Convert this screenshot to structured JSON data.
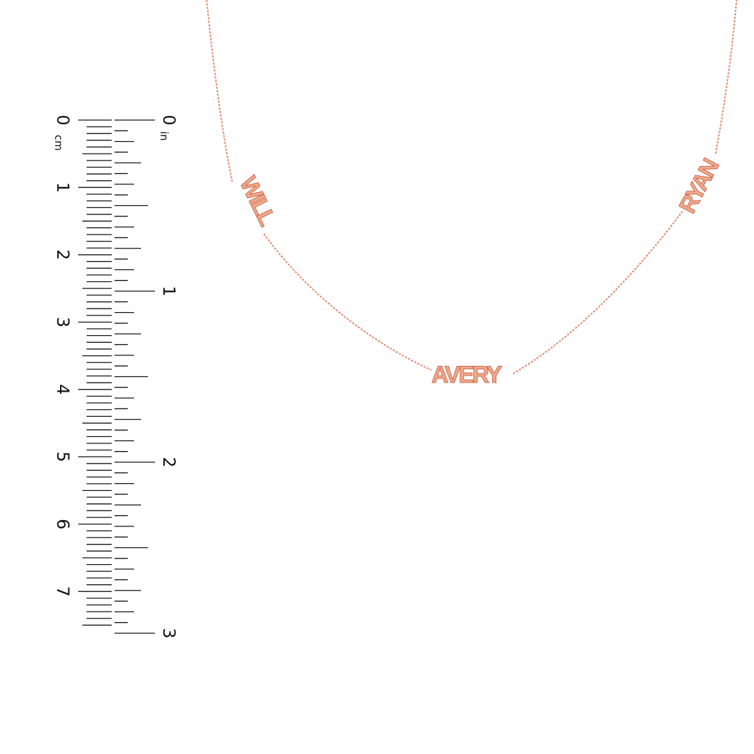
{
  "ruler": {
    "cm_unit": "cm",
    "in_unit": "in",
    "cm_labels": [
      "0",
      "1",
      "2",
      "3",
      "4",
      "5",
      "6",
      "7"
    ],
    "in_labels": [
      "0",
      "1",
      "2",
      "3"
    ]
  },
  "necklace": {
    "metal_color": "#e8906f",
    "pendants": [
      "WILL",
      "AVERY",
      "RYAN"
    ]
  }
}
